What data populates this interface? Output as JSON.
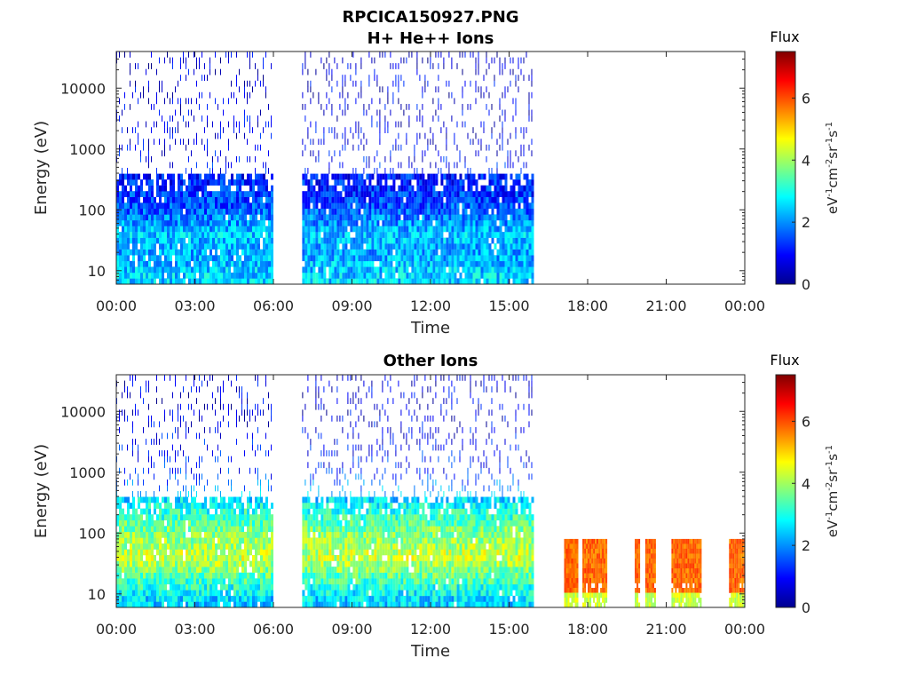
{
  "figure_title": "RPCICA150927.PNG",
  "chart_data": [
    {
      "type": "heatmap",
      "title": "H+ He++ Ions",
      "xlabel": "Time",
      "ylabel": "Energy (eV)",
      "x_ticks": [
        "00:00",
        "03:00",
        "06:00",
        "09:00",
        "12:00",
        "15:00",
        "18:00",
        "21:00",
        "00:00"
      ],
      "xlim_hours": [
        0,
        24
      ],
      "y_scale": "log",
      "ylim": [
        6,
        40000
      ],
      "y_ticks": [
        10,
        100,
        1000,
        10000
      ],
      "y_tick_labels": [
        "10",
        "100",
        "1000",
        "10000"
      ],
      "colorbar": {
        "title": "Flux",
        "label": "eV-1cm-2sr-1s-1",
        "range": [
          0,
          7.5
        ],
        "ticks": [
          "0",
          "2",
          "4",
          "6"
        ]
      },
      "data_segments_hours": [
        [
          0,
          6
        ],
        [
          7.1,
          15.9
        ]
      ],
      "flux_profile": [
        {
          "energy_eV": 8,
          "flux": 2.5
        },
        {
          "energy_eV": 20,
          "flux": 2.2
        },
        {
          "energy_eV": 40,
          "flux": 2.4
        },
        {
          "energy_eV": 100,
          "flux": 1.6
        },
        {
          "energy_eV": 200,
          "flux": 1.3
        },
        {
          "energy_eV": 1000,
          "flux": 0.8
        },
        {
          "energy_eV": 10000,
          "flux": 0.7
        },
        {
          "energy_eV": 30000,
          "flux": 0.6
        }
      ]
    },
    {
      "type": "heatmap",
      "title": "Other Ions",
      "xlabel": "Time",
      "ylabel": "Energy (eV)",
      "x_ticks": [
        "00:00",
        "03:00",
        "06:00",
        "09:00",
        "12:00",
        "15:00",
        "18:00",
        "21:00",
        "00:00"
      ],
      "xlim_hours": [
        0,
        24
      ],
      "y_scale": "log",
      "ylim": [
        6,
        40000
      ],
      "y_ticks": [
        10,
        100,
        1000,
        10000
      ],
      "y_tick_labels": [
        "10",
        "100",
        "1000",
        "10000"
      ],
      "colorbar": {
        "title": "Flux",
        "label": "eV-1cm-2sr-1s-1",
        "range": [
          0,
          7.5
        ],
        "ticks": [
          "0",
          "2",
          "4",
          "6"
        ]
      },
      "data_segments_hours": [
        [
          0,
          6
        ],
        [
          7.1,
          15.9
        ]
      ],
      "flux_profile": [
        {
          "energy_eV": 8,
          "flux": 2.5
        },
        {
          "energy_eV": 15,
          "flux": 3.2
        },
        {
          "energy_eV": 40,
          "flux": 4.3
        },
        {
          "energy_eV": 100,
          "flux": 3.8
        },
        {
          "energy_eV": 300,
          "flux": 2.8
        },
        {
          "energy_eV": 1000,
          "flux": 1.2
        },
        {
          "energy_eV": 10000,
          "flux": 0.7
        }
      ],
      "high_flux_segments_hours": [
        [
          17.1,
          17.6
        ],
        [
          17.8,
          18.7
        ],
        [
          19.8,
          20.0
        ],
        [
          20.2,
          20.6
        ],
        [
          21.2,
          22.3
        ],
        [
          23.4,
          24.0
        ]
      ],
      "high_flux_energy_range_eV": [
        6,
        80
      ],
      "high_flux_value": 5.8
    }
  ]
}
